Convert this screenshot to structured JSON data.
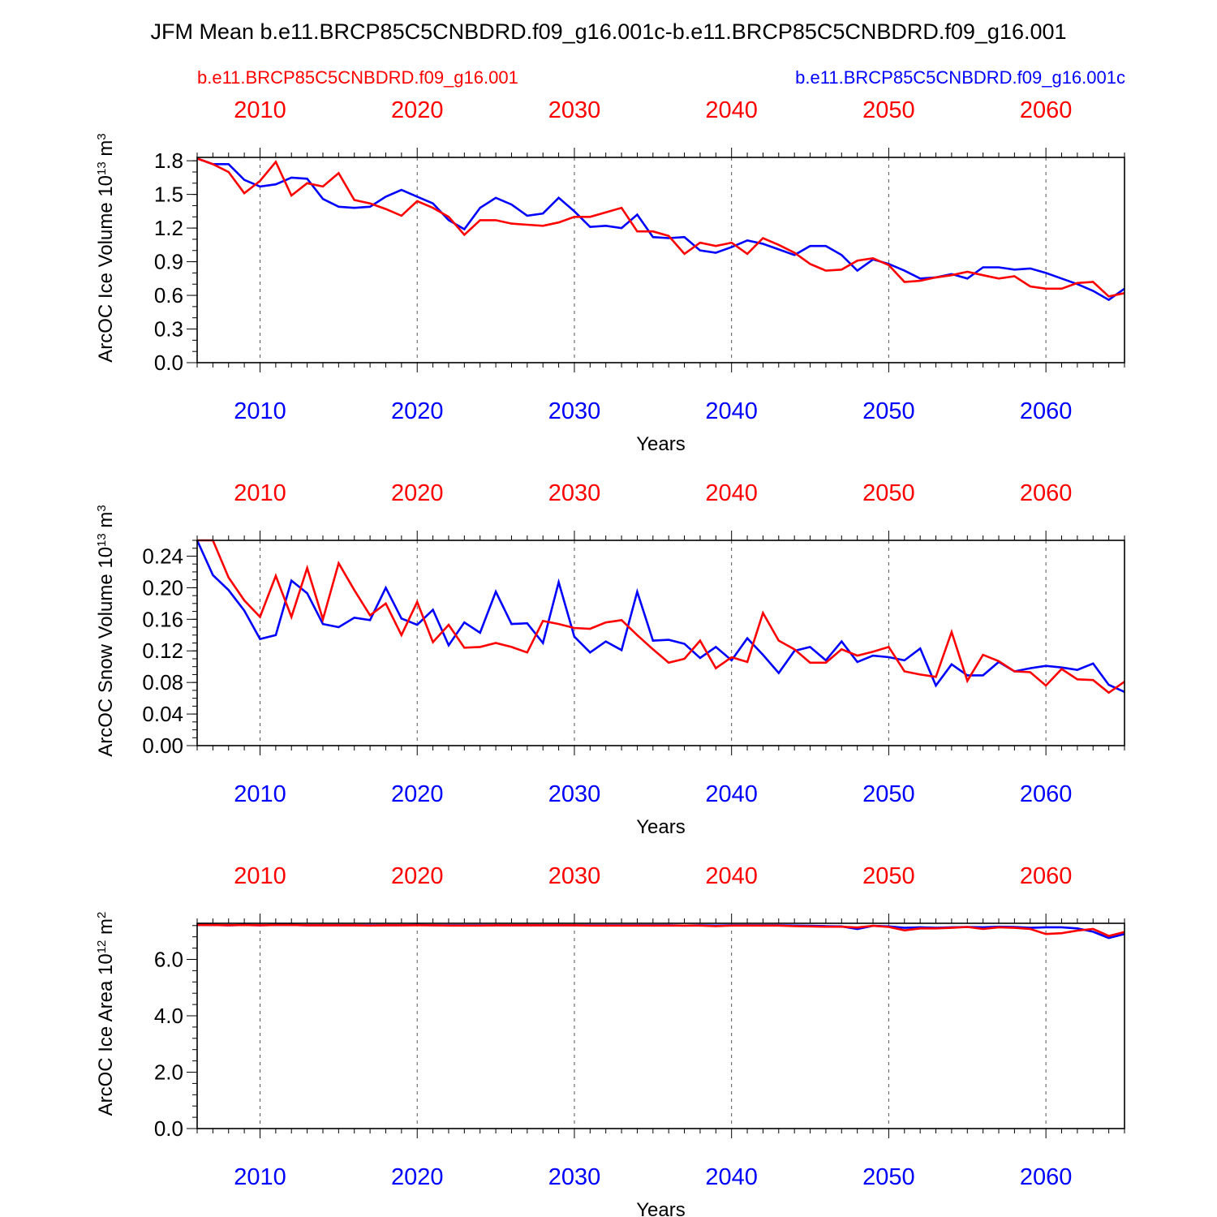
{
  "title": "JFM Mean b.e11.BRCP85C5CNBDRD.f09_g16.001c-b.e11.BRCP85C5CNBDRD.f09_g16.001",
  "legend": {
    "left": {
      "label": "b.e11.BRCP85C5CNBDRD.f09_g16.001",
      "color": "#ff0000"
    },
    "right": {
      "label": "b.e11.BRCP85C5CNBDRD.f09_g16.001c",
      "color": "#0000ff"
    }
  },
  "colors": {
    "red": "#ff0000",
    "blue": "#0000ff",
    "axis": "#000000",
    "grid": "#555555"
  },
  "chart_data": [
    {
      "type": "line",
      "xlabel": "Years",
      "ylabel": "ArcOC Ice Volume",
      "yunit": {
        "base": "10",
        "exp": "13",
        "unit": "m",
        "unit_exp": "3"
      },
      "x_range": [
        2006,
        2065
      ],
      "xticks": [
        "2010",
        "2020",
        "2030",
        "2040",
        "2050",
        "2060"
      ],
      "ylim": [
        0,
        1.83
      ],
      "yticks": [
        "0.0",
        "0.3",
        "0.6",
        "0.9",
        "1.2",
        "1.5",
        "1.8"
      ],
      "ytick_values": [
        0,
        0.3,
        0.6,
        0.9,
        1.2,
        1.5,
        1.8
      ],
      "y_minor_step": 0.1,
      "x": [
        2006,
        2007,
        2008,
        2009,
        2010,
        2011,
        2012,
        2013,
        2014,
        2015,
        2016,
        2017,
        2018,
        2019,
        2020,
        2021,
        2022,
        2023,
        2024,
        2025,
        2026,
        2027,
        2028,
        2029,
        2030,
        2031,
        2032,
        2033,
        2034,
        2035,
        2036,
        2037,
        2038,
        2039,
        2040,
        2041,
        2042,
        2043,
        2044,
        2045,
        2046,
        2047,
        2048,
        2049,
        2050,
        2051,
        2052,
        2053,
        2054,
        2055,
        2056,
        2057,
        2058,
        2059,
        2060,
        2061,
        2062,
        2063,
        2064,
        2065
      ],
      "series": [
        {
          "name": "b.e11.BRCP85C5CNBDRD.f09_g16.001c",
          "color": "#0000ff",
          "values": [
            1.82,
            1.77,
            1.77,
            1.63,
            1.57,
            1.59,
            1.65,
            1.64,
            1.46,
            1.39,
            1.38,
            1.39,
            1.48,
            1.54,
            1.48,
            1.42,
            1.27,
            1.19,
            1.38,
            1.47,
            1.41,
            1.31,
            1.33,
            1.47,
            1.35,
            1.21,
            1.22,
            1.2,
            1.32,
            1.12,
            1.11,
            1.12,
            1.0,
            0.98,
            1.03,
            1.09,
            1.06,
            1.01,
            0.96,
            1.04,
            1.04,
            0.96,
            0.82,
            0.92,
            0.88,
            0.82,
            0.75,
            0.76,
            0.79,
            0.75,
            0.85,
            0.85,
            0.83,
            0.84,
            0.8,
            0.75,
            0.7,
            0.64,
            0.56,
            0.66
          ]
        },
        {
          "name": "b.e11.BRCP85C5CNBDRD.f09_g16.001",
          "color": "#ff0000",
          "values": [
            1.82,
            1.77,
            1.7,
            1.51,
            1.62,
            1.79,
            1.49,
            1.6,
            1.57,
            1.69,
            1.45,
            1.42,
            1.37,
            1.31,
            1.44,
            1.38,
            1.3,
            1.14,
            1.27,
            1.27,
            1.24,
            1.23,
            1.22,
            1.25,
            1.3,
            1.3,
            1.34,
            1.38,
            1.17,
            1.17,
            1.13,
            0.97,
            1.07,
            1.04,
            1.07,
            0.97,
            1.11,
            1.05,
            0.98,
            0.88,
            0.82,
            0.83,
            0.91,
            0.93,
            0.87,
            0.72,
            0.73,
            0.76,
            0.78,
            0.81,
            0.78,
            0.75,
            0.77,
            0.68,
            0.66,
            0.66,
            0.71,
            0.72,
            0.59,
            0.62
          ]
        }
      ]
    },
    {
      "type": "line",
      "xlabel": "Years",
      "ylabel": "ArcOC Snow Volume",
      "yunit": {
        "base": "10",
        "exp": "13",
        "unit": "m",
        "unit_exp": "3"
      },
      "x_range": [
        2006,
        2065
      ],
      "xticks": [
        "2010",
        "2020",
        "2030",
        "2040",
        "2050",
        "2060"
      ],
      "ylim": [
        0,
        0.26
      ],
      "yticks": [
        "0.00",
        "0.04",
        "0.08",
        "0.12",
        "0.16",
        "0.20",
        "0.24"
      ],
      "ytick_values": [
        0,
        0.04,
        0.08,
        0.12,
        0.16,
        0.2,
        0.24
      ],
      "y_minor_step": 0.01,
      "x": [
        2006,
        2007,
        2008,
        2009,
        2010,
        2011,
        2012,
        2013,
        2014,
        2015,
        2016,
        2017,
        2018,
        2019,
        2020,
        2021,
        2022,
        2023,
        2024,
        2025,
        2026,
        2027,
        2028,
        2029,
        2030,
        2031,
        2032,
        2033,
        2034,
        2035,
        2036,
        2037,
        2038,
        2039,
        2040,
        2041,
        2042,
        2043,
        2044,
        2045,
        2046,
        2047,
        2048,
        2049,
        2050,
        2051,
        2052,
        2053,
        2054,
        2055,
        2056,
        2057,
        2058,
        2059,
        2060,
        2061,
        2062,
        2063,
        2064,
        2065
      ],
      "series": [
        {
          "name": "b.e11.BRCP85C5CNBDRD.f09_g16.001c",
          "color": "#0000ff",
          "values": [
            0.26,
            0.216,
            0.197,
            0.171,
            0.135,
            0.14,
            0.209,
            0.193,
            0.154,
            0.15,
            0.162,
            0.159,
            0.2,
            0.161,
            0.153,
            0.172,
            0.127,
            0.156,
            0.143,
            0.195,
            0.154,
            0.155,
            0.13,
            0.207,
            0.138,
            0.118,
            0.132,
            0.121,
            0.195,
            0.133,
            0.134,
            0.129,
            0.111,
            0.125,
            0.108,
            0.136,
            0.115,
            0.092,
            0.12,
            0.125,
            0.108,
            0.132,
            0.106,
            0.114,
            0.112,
            0.108,
            0.123,
            0.076,
            0.103,
            0.089,
            0.089,
            0.106,
            0.094,
            0.098,
            0.101,
            0.099,
            0.096,
            0.104,
            0.077,
            0.068
          ]
        },
        {
          "name": "b.e11.BRCP85C5CNBDRD.f09_g16.001",
          "color": "#ff0000",
          "values": [
            0.26,
            0.26,
            0.213,
            0.184,
            0.163,
            0.215,
            0.163,
            0.225,
            0.16,
            0.231,
            0.197,
            0.165,
            0.18,
            0.14,
            0.182,
            0.131,
            0.153,
            0.124,
            0.125,
            0.13,
            0.125,
            0.118,
            0.158,
            0.154,
            0.149,
            0.148,
            0.156,
            0.159,
            0.14,
            0.122,
            0.105,
            0.11,
            0.133,
            0.098,
            0.112,
            0.106,
            0.168,
            0.133,
            0.122,
            0.105,
            0.105,
            0.122,
            0.114,
            0.119,
            0.125,
            0.094,
            0.09,
            0.087,
            0.144,
            0.082,
            0.115,
            0.107,
            0.094,
            0.093,
            0.076,
            0.097,
            0.084,
            0.083,
            0.067,
            0.081
          ]
        }
      ]
    },
    {
      "type": "line",
      "xlabel": "Years",
      "ylabel": "ArcOC Ice Area",
      "yunit": {
        "base": "10",
        "exp": "12",
        "unit": "m",
        "unit_exp": "2"
      },
      "x_range": [
        2006,
        2065
      ],
      "xticks": [
        "2010",
        "2020",
        "2030",
        "2040",
        "2050",
        "2060"
      ],
      "ylim": [
        0,
        7.28
      ],
      "yticks": [
        "0.0",
        "2.0",
        "4.0",
        "6.0"
      ],
      "ytick_values": [
        0,
        2,
        4,
        6
      ],
      "y_minor_step": 0.4,
      "x": [
        2006,
        2007,
        2008,
        2009,
        2010,
        2011,
        2012,
        2013,
        2014,
        2015,
        2016,
        2017,
        2018,
        2019,
        2020,
        2021,
        2022,
        2023,
        2024,
        2025,
        2026,
        2027,
        2028,
        2029,
        2030,
        2031,
        2032,
        2033,
        2034,
        2035,
        2036,
        2037,
        2038,
        2039,
        2040,
        2041,
        2042,
        2043,
        2044,
        2045,
        2046,
        2047,
        2048,
        2049,
        2050,
        2051,
        2052,
        2053,
        2054,
        2055,
        2056,
        2057,
        2058,
        2059,
        2060,
        2061,
        2062,
        2063,
        2064,
        2065
      ],
      "series": [
        {
          "name": "b.e11.BRCP85C5CNBDRD.f09_g16.001c",
          "color": "#0000ff",
          "values": [
            7.22,
            7.22,
            7.21,
            7.22,
            7.21,
            7.22,
            7.22,
            7.21,
            7.21,
            7.21,
            7.21,
            7.21,
            7.21,
            7.21,
            7.22,
            7.21,
            7.21,
            7.21,
            7.21,
            7.21,
            7.21,
            7.21,
            7.21,
            7.21,
            7.21,
            7.21,
            7.21,
            7.21,
            7.21,
            7.21,
            7.21,
            7.2,
            7.21,
            7.2,
            7.21,
            7.21,
            7.21,
            7.21,
            7.2,
            7.19,
            7.18,
            7.17,
            7.08,
            7.19,
            7.17,
            7.12,
            7.14,
            7.12,
            7.14,
            7.15,
            7.14,
            7.16,
            7.15,
            7.12,
            7.14,
            7.14,
            7.1,
            6.98,
            6.76,
            6.9
          ]
        },
        {
          "name": "b.e11.BRCP85C5CNBDRD.f09_g16.001",
          "color": "#ff0000",
          "values": [
            7.22,
            7.22,
            7.21,
            7.22,
            7.21,
            7.22,
            7.22,
            7.21,
            7.21,
            7.21,
            7.21,
            7.2,
            7.21,
            7.21,
            7.21,
            7.21,
            7.2,
            7.2,
            7.2,
            7.21,
            7.21,
            7.21,
            7.21,
            7.21,
            7.21,
            7.2,
            7.2,
            7.2,
            7.2,
            7.2,
            7.2,
            7.2,
            7.2,
            7.18,
            7.2,
            7.2,
            7.2,
            7.2,
            7.18,
            7.17,
            7.16,
            7.16,
            7.13,
            7.19,
            7.15,
            7.03,
            7.1,
            7.1,
            7.12,
            7.15,
            7.08,
            7.14,
            7.12,
            7.08,
            6.9,
            6.93,
            7.02,
            7.08,
            6.83,
            6.97
          ]
        }
      ]
    }
  ]
}
